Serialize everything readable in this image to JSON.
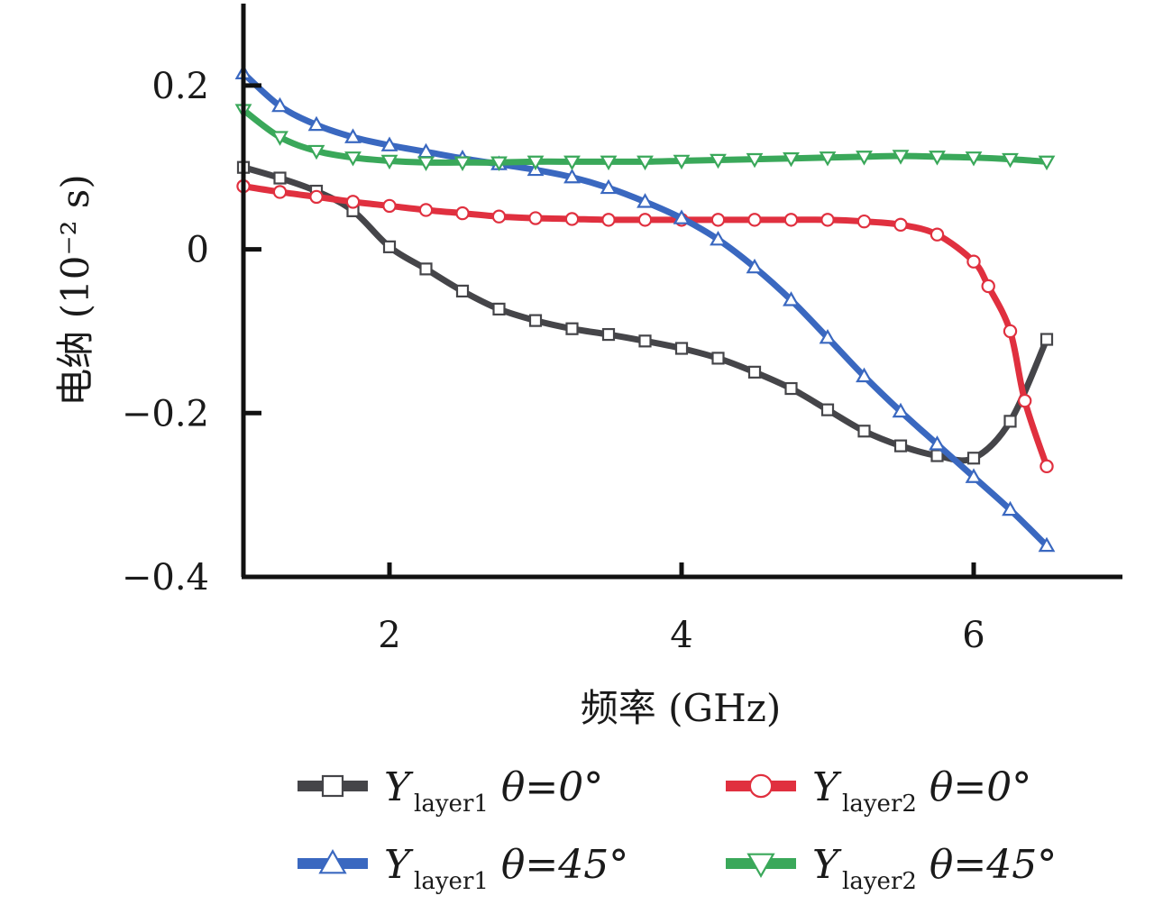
{
  "chart_data": {
    "type": "line",
    "title": "",
    "xlabel": "频率 (GHz)",
    "ylabel": "电纳 (10⁻² s)",
    "xlim": [
      1.0,
      7.0
    ],
    "ylim": [
      -0.4,
      0.3
    ],
    "xticks": [
      2,
      4,
      6
    ],
    "xtick_labels": [
      "2",
      "4",
      "6"
    ],
    "yticks": [
      0.2,
      0,
      -0.2,
      -0.4
    ],
    "ytick_labels": [
      "0.2",
      "0",
      "−0.2",
      "−0.4"
    ],
    "grid": false,
    "legend": "bottom",
    "series": [
      {
        "name": "Y layer1 θ=0°",
        "legend_main": "Y",
        "legend_sub": "layer1",
        "legend_angle": "θ=0°",
        "color": "#454549",
        "marker": "square",
        "x": [
          1.0,
          1.25,
          1.5,
          1.75,
          2.0,
          2.25,
          2.5,
          2.75,
          3.0,
          3.25,
          3.5,
          3.75,
          4.0,
          4.25,
          4.5,
          4.75,
          5.0,
          5.25,
          5.5,
          5.75,
          6.0,
          6.25,
          6.5
        ],
        "y": [
          0.1,
          0.087,
          0.071,
          0.047,
          0.003,
          -0.024,
          -0.051,
          -0.073,
          -0.087,
          -0.097,
          -0.104,
          -0.112,
          -0.121,
          -0.133,
          -0.15,
          -0.17,
          -0.196,
          -0.222,
          -0.24,
          -0.252,
          -0.255,
          -0.21,
          -0.11
        ]
      },
      {
        "name": "Y layer2 θ=0°",
        "legend_main": "Y",
        "legend_sub": "layer2",
        "legend_angle": "θ=0°",
        "color": "#e0303f",
        "marker": "circle",
        "x": [
          1.0,
          1.25,
          1.5,
          1.75,
          2.0,
          2.25,
          2.5,
          2.75,
          3.0,
          3.25,
          3.5,
          3.75,
          4.0,
          4.25,
          4.5,
          4.75,
          5.0,
          5.25,
          5.5,
          5.75,
          6.0,
          6.1,
          6.25,
          6.35,
          6.5
        ],
        "y": [
          0.077,
          0.07,
          0.064,
          0.058,
          0.053,
          0.048,
          0.044,
          0.04,
          0.038,
          0.037,
          0.036,
          0.036,
          0.036,
          0.036,
          0.036,
          0.036,
          0.036,
          0.034,
          0.03,
          0.018,
          -0.015,
          -0.045,
          -0.1,
          -0.185,
          -0.265
        ]
      },
      {
        "name": "Y layer1 θ=45°",
        "legend_main": "Y",
        "legend_sub": "layer1",
        "legend_angle": "θ=45°",
        "color": "#3a68c0",
        "marker": "triangle-up",
        "x": [
          1.0,
          1.25,
          1.5,
          1.75,
          2.0,
          2.25,
          2.5,
          2.75,
          3.0,
          3.25,
          3.5,
          3.75,
          4.0,
          4.25,
          4.5,
          4.75,
          5.0,
          5.25,
          5.5,
          5.75,
          6.0,
          6.25,
          6.5
        ],
        "y": [
          0.215,
          0.175,
          0.152,
          0.137,
          0.127,
          0.119,
          0.111,
          0.104,
          0.097,
          0.088,
          0.075,
          0.058,
          0.038,
          0.012,
          -0.022,
          -0.062,
          -0.108,
          -0.155,
          -0.198,
          -0.238,
          -0.278,
          -0.318,
          -0.362
        ]
      },
      {
        "name": "Y layer2 θ=45°",
        "legend_main": "Y",
        "legend_sub": "layer2",
        "legend_angle": "θ=45°",
        "color": "#3aa85a",
        "marker": "triangle-down",
        "x": [
          1.0,
          1.25,
          1.5,
          1.75,
          2.0,
          2.25,
          2.5,
          2.75,
          3.0,
          3.25,
          3.5,
          3.75,
          4.0,
          4.25,
          4.5,
          4.75,
          5.0,
          5.25,
          5.5,
          5.75,
          6.0,
          6.25,
          6.5
        ],
        "y": [
          0.17,
          0.137,
          0.12,
          0.112,
          0.108,
          0.106,
          0.106,
          0.106,
          0.107,
          0.107,
          0.107,
          0.107,
          0.108,
          0.109,
          0.11,
          0.111,
          0.112,
          0.113,
          0.114,
          0.113,
          0.112,
          0.11,
          0.107
        ]
      }
    ]
  }
}
